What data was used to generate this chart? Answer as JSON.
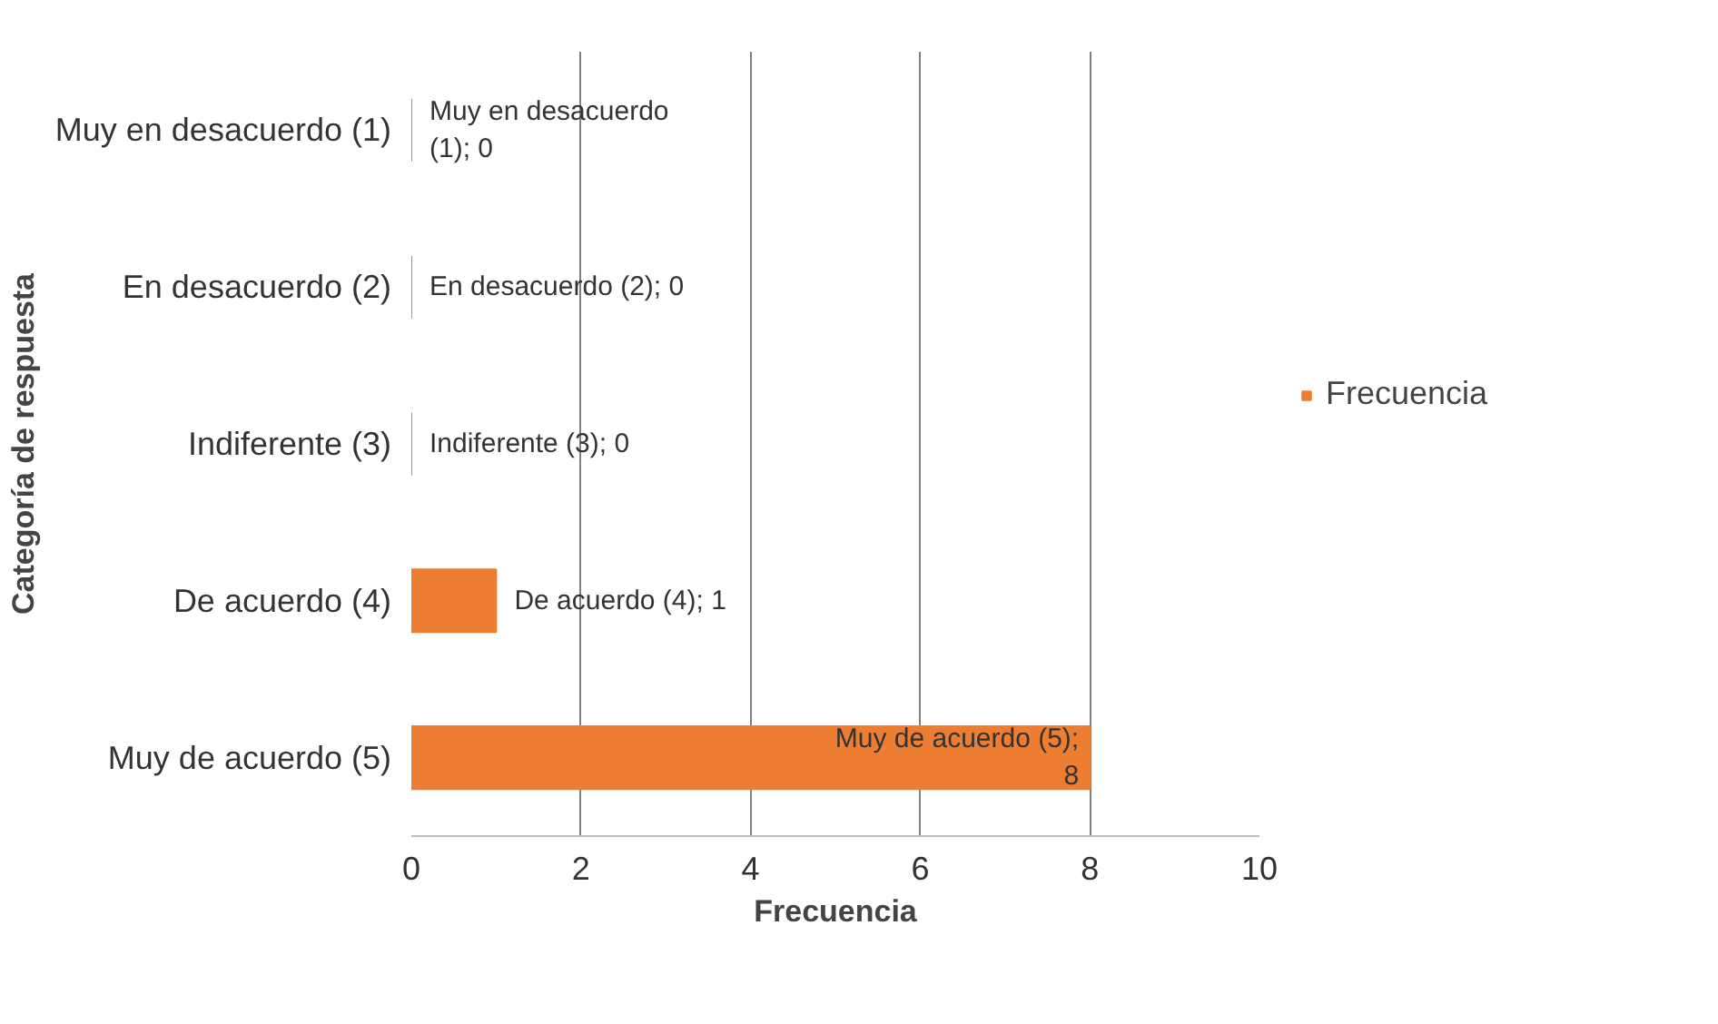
{
  "chart_data": {
    "type": "bar",
    "orientation": "horizontal",
    "xlabel": "Frecuencia",
    "ylabel": "Categoría de respuesta",
    "categories": [
      "Muy en desacuerdo (1)",
      "En desacuerdo (2)",
      "Indiferente (3)",
      "De acuerdo (4)",
      "Muy de acuerdo (5)"
    ],
    "series": [
      {
        "name": "Frecuencia",
        "color": "#ed7d31",
        "values": [
          0,
          0,
          0,
          1,
          8
        ],
        "value_labels": [
          "Muy en desacuerdo (1); 0",
          "En desacuerdo (2); 0",
          "Indiferente (3); 0",
          "De acuerdo (4); 1",
          "Muy de acuerdo (5); 8"
        ]
      }
    ],
    "xlim": [
      0,
      10
    ],
    "xticks": [
      0,
      2,
      4,
      6,
      8,
      10
    ],
    "grid": "x",
    "legend": "right"
  }
}
